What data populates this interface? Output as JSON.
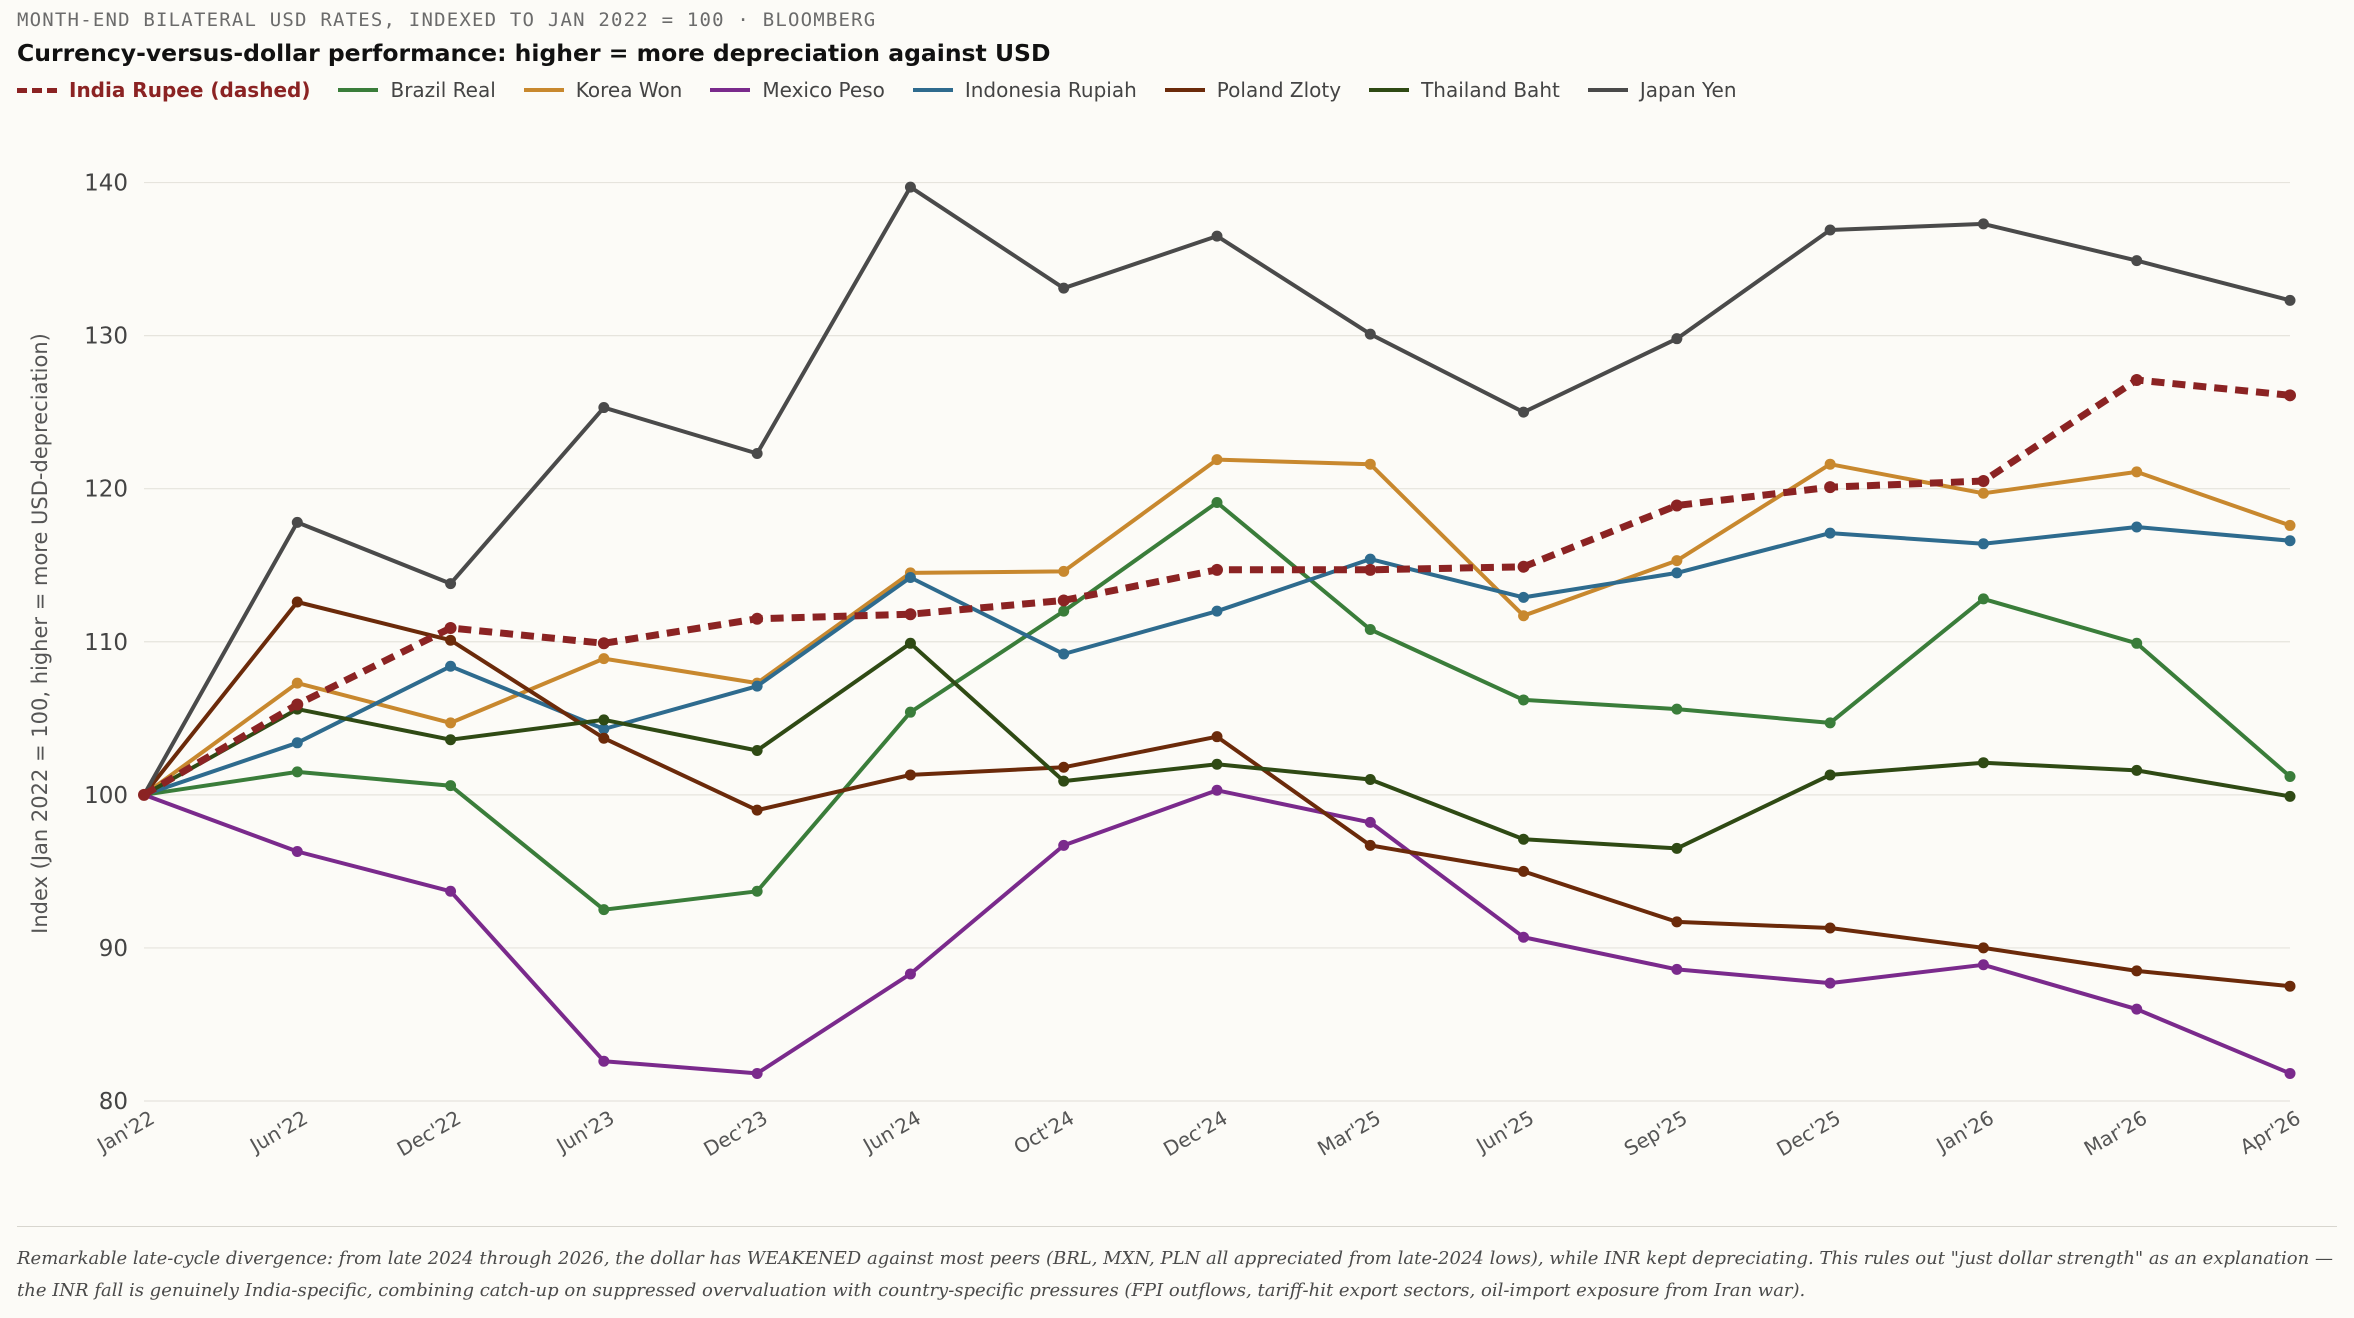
{
  "header": {
    "kicker": "MONTH-END BILATERAL USD RATES, INDEXED TO JAN 2022 = 100 · BLOOMBERG",
    "title": "Currency-versus-dollar performance: higher = more depreciation against USD"
  },
  "footnote": "Remarkable late-cycle divergence: from late 2024 through 2026, the dollar has WEAKENED against most peers (BRL, MXN, PLN all appreciated from late-2024 lows), while INR kept depreciating. This rules out \"just dollar strength\" as an explanation — the INR fall is genuinely India-specific, combining catch-up on suppressed overvaluation with country-specific pressures (FPI outflows, tariff-hit export sectors, oil-import exposure from Iran war).",
  "chart_data": {
    "type": "line",
    "title": "Currency-versus-dollar performance: higher = more depreciation against USD",
    "ylabel": "Index (Jan 2022 = 100, higher = more USD-depreciation)",
    "xlabel": "",
    "ylim": [
      80,
      145
    ],
    "yticks": [
      80,
      90,
      100,
      110,
      120,
      130,
      140
    ],
    "grid": "horizontal",
    "legend_position": "top-left",
    "categories": [
      "Jan'22",
      "Jun'22",
      "Dec'22",
      "Jun'23",
      "Dec'23",
      "Jun'24",
      "Oct'24",
      "Dec'24",
      "Mar'25",
      "Jun'25",
      "Sep'25",
      "Dec'25",
      "Jan'26",
      "Mar'26",
      "Apr'26"
    ],
    "series": [
      {
        "name": "India Rupee (dashed)",
        "color": "#8b2323",
        "dashed": true,
        "values": [
          100,
          105.9,
          110.9,
          109.9,
          111.5,
          111.8,
          112.7,
          114.7,
          114.7,
          114.9,
          118.9,
          120.1,
          120.5,
          127.1,
          126.1
        ]
      },
      {
        "name": "Brazil Real",
        "color": "#3a7d3a",
        "values": [
          100,
          101.5,
          100.6,
          92.5,
          93.7,
          105.4,
          112.0,
          119.1,
          110.8,
          106.2,
          105.6,
          104.7,
          112.8,
          109.9,
          101.2
        ]
      },
      {
        "name": "Korea Won",
        "color": "#c8882e",
        "values": [
          100,
          107.3,
          104.7,
          108.9,
          107.3,
          114.5,
          114.6,
          121.9,
          121.6,
          111.7,
          115.3,
          121.6,
          119.7,
          121.1,
          117.6
        ]
      },
      {
        "name": "Mexico Peso",
        "color": "#7a2a8c",
        "values": [
          100,
          96.3,
          93.7,
          82.6,
          81.8,
          88.3,
          96.7,
          100.3,
          98.2,
          90.7,
          88.6,
          87.7,
          88.9,
          86.0,
          81.8
        ]
      },
      {
        "name": "Indonesia Rupiah",
        "color": "#2e6b8e",
        "values": [
          100,
          103.4,
          108.4,
          104.3,
          107.1,
          114.2,
          109.2,
          112.0,
          115.4,
          112.9,
          114.5,
          117.1,
          116.4,
          117.5,
          116.6
        ]
      },
      {
        "name": "Poland Zloty",
        "color": "#6b2a0a",
        "values": [
          100,
          112.6,
          110.1,
          103.7,
          99.0,
          101.3,
          101.8,
          103.8,
          96.7,
          95.0,
          91.7,
          91.3,
          90.0,
          88.5,
          87.5
        ]
      },
      {
        "name": "Thailand Baht",
        "color": "#2f4a14",
        "values": [
          100,
          105.6,
          103.6,
          104.9,
          102.9,
          109.9,
          100.9,
          102.0,
          101.0,
          97.1,
          96.5,
          101.3,
          102.1,
          101.6,
          99.9
        ]
      },
      {
        "name": "Japan Yen",
        "color": "#4a4a4a",
        "values": [
          100,
          117.8,
          113.8,
          125.3,
          122.3,
          139.7,
          133.1,
          136.5,
          130.1,
          125.0,
          129.8,
          136.9,
          137.3,
          134.9,
          132.3
        ]
      }
    ]
  }
}
